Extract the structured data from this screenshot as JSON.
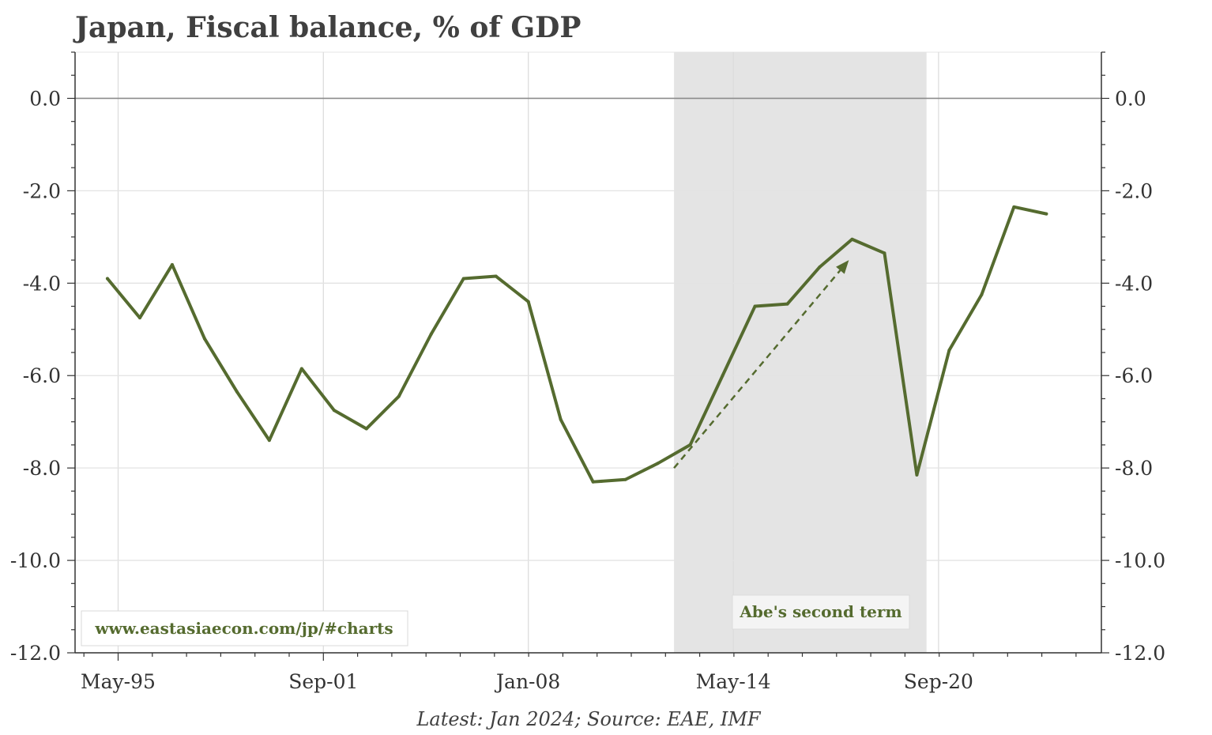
{
  "chart_data": {
    "type": "line",
    "title": "Japan, Fiscal balance, % of GDP",
    "source": "Latest: Jan 2024; Source: EAE, IMF",
    "watermark": "www.eastasiaecon.com/jp/#charts",
    "xlabel": "",
    "ylabel": "",
    "ylim": [
      -12.0,
      1.0
    ],
    "xlim": [
      1994.0,
      2025.7
    ],
    "grid": true,
    "y_ticks": [
      0.0,
      -2.0,
      -4.0,
      -6.0,
      -8.0,
      -10.0,
      -12.0
    ],
    "y_tick_labels": [
      "0.0",
      "-2.0",
      "-4.0",
      "-6.0",
      "-8.0",
      "-10.0",
      "-12.0"
    ],
    "x_ticks": [
      1995.33,
      2001.67,
      2008.0,
      2014.33,
      2020.67
    ],
    "x_tick_labels": [
      "May-95",
      "Sep-01",
      "Jan-08",
      "May-14",
      "Sep-20"
    ],
    "shaded_region": {
      "label": "Abe's second term",
      "x_start": 2012.5,
      "x_end": 2020.3
    },
    "annotation_arrow": {
      "from": [
        2012.5,
        -8.0
      ],
      "to": [
        2017.9,
        -3.5
      ],
      "style": "dashed"
    },
    "series": [
      {
        "name": "Fiscal balance",
        "color": "#556b2f",
        "x": [
          1995,
          1996,
          1997,
          1998,
          1999,
          2000,
          2001,
          2002,
          2003,
          2004,
          2005,
          2006,
          2007,
          2008,
          2009,
          2010,
          2011,
          2012,
          2013,
          2014,
          2015,
          2016,
          2017,
          2018,
          2019,
          2020,
          2021,
          2022,
          2023,
          2024
        ],
        "values": [
          -3.9,
          -4.75,
          -3.6,
          -5.2,
          -6.35,
          -7.4,
          -5.85,
          -6.75,
          -7.15,
          -6.45,
          -5.1,
          -3.9,
          -3.85,
          -4.4,
          -6.95,
          -8.3,
          -8.25,
          -7.9,
          -7.5,
          -6.0,
          -4.5,
          -4.45,
          -3.65,
          -3.05,
          -3.35,
          -8.15,
          -5.45,
          -4.25,
          -2.35,
          -2.5
        ]
      }
    ]
  },
  "colors": {
    "line": "#556b2f",
    "shade": "#e4e4e4",
    "grid": "#e6e6e6",
    "axis": "#333333"
  }
}
